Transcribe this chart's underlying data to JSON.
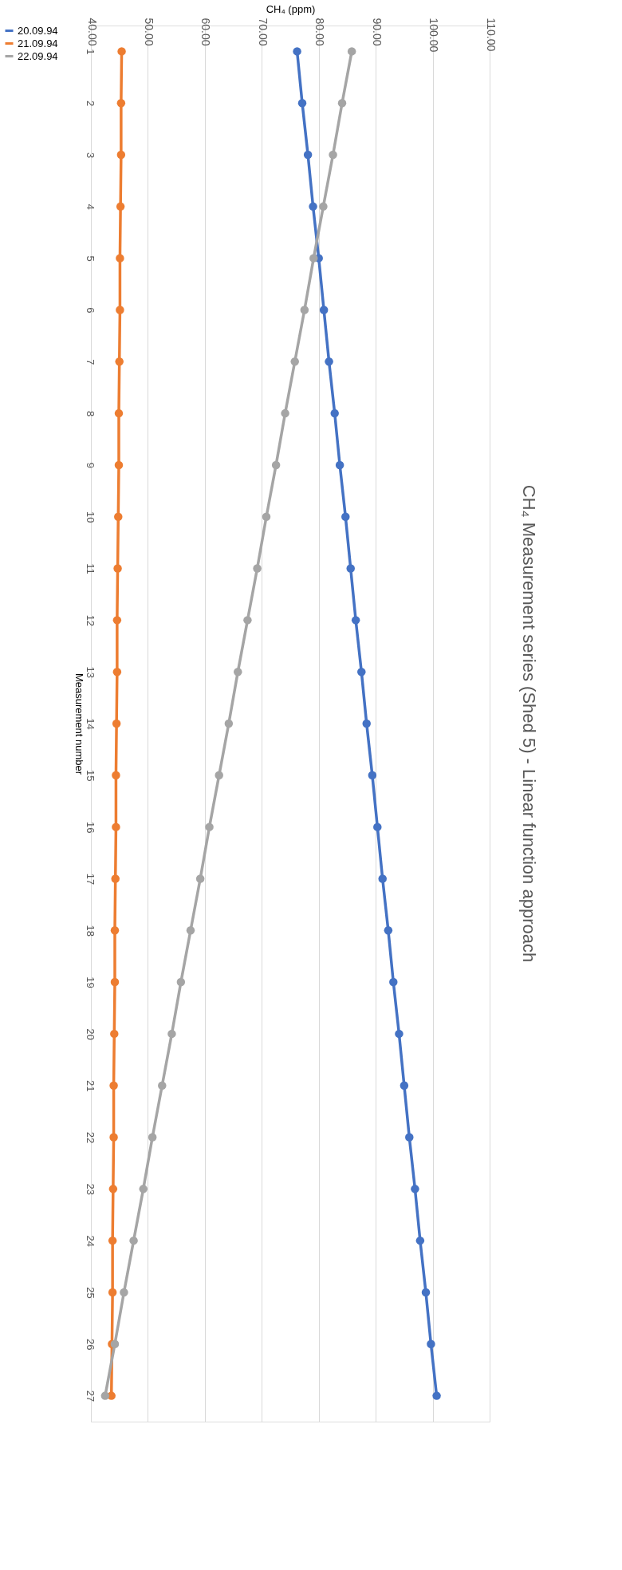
{
  "chart_data": {
    "type": "line",
    "title": "CH₄ Measurement series (Shed 5) - Linear function approach",
    "xlabel": "CH₄ (ppm)",
    "ylabel": "Measurement number",
    "orientation": "horizontal",
    "categories": [
      "1",
      "2",
      "3",
      "4",
      "5",
      "6",
      "7",
      "8",
      "9",
      "10",
      "11",
      "12",
      "13",
      "14",
      "15",
      "16",
      "17",
      "18",
      "19",
      "20",
      "21",
      "22",
      "23",
      "24",
      "25",
      "26",
      "27"
    ],
    "series": [
      {
        "name": "20.09.94",
        "color": "#4472c4",
        "values": [
          76.2,
          77.1,
          78.1,
          79.0,
          80.0,
          80.9,
          81.8,
          82.8,
          83.7,
          84.7,
          85.6,
          86.5,
          87.5,
          88.4,
          89.4,
          90.3,
          91.2,
          92.2,
          93.1,
          94.1,
          95.0,
          95.9,
          96.9,
          97.8,
          98.8,
          99.7,
          100.7
        ]
      },
      {
        "name": "21.09.94",
        "color": "#ed7d31",
        "values": [
          45.4,
          45.3,
          45.3,
          45.2,
          45.1,
          45.1,
          45.0,
          44.9,
          44.9,
          44.8,
          44.7,
          44.6,
          44.6,
          44.5,
          44.4,
          44.4,
          44.3,
          44.2,
          44.2,
          44.1,
          44.0,
          44.0,
          43.9,
          43.8,
          43.8,
          43.7,
          43.6
        ]
      },
      {
        "name": "22.09.94",
        "color": "#a5a5a5",
        "values": [
          85.8,
          84.1,
          82.5,
          80.8,
          79.1,
          77.5,
          75.8,
          74.1,
          72.5,
          70.8,
          69.2,
          67.5,
          65.8,
          64.2,
          62.5,
          60.8,
          59.2,
          57.5,
          55.8,
          54.2,
          52.5,
          50.8,
          49.2,
          47.5,
          45.8,
          44.2,
          42.5
        ]
      }
    ],
    "xlim": [
      40,
      110
    ],
    "xticks": [
      {
        "value": 40,
        "label": "40.00"
      },
      {
        "value": 50,
        "label": "50.00"
      },
      {
        "value": 60,
        "label": "60.00"
      },
      {
        "value": 70,
        "label": "70.00"
      },
      {
        "value": 80,
        "label": "80.00"
      },
      {
        "value": 90,
        "label": "90.00"
      },
      {
        "value": 100,
        "label": "100.00"
      },
      {
        "value": 110,
        "label": "110.00"
      }
    ],
    "grid": "x",
    "legend": "left",
    "marker": "circle",
    "line_style": "solid"
  }
}
